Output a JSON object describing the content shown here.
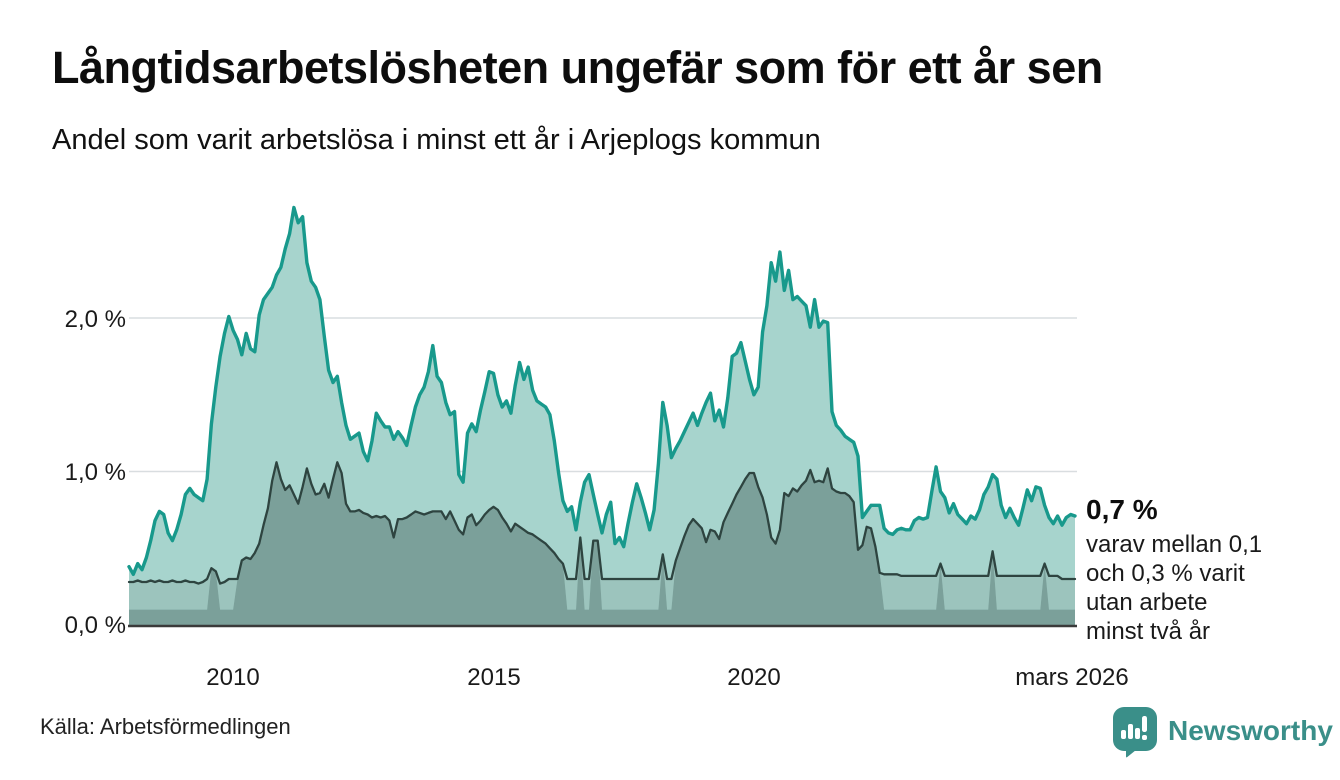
{
  "header": {
    "title": "Långtidsarbetslösheten ungefär som för ett år sen",
    "subtitle": "Andel som varit arbetslösa i minst ett år i Arjeplogs kommun"
  },
  "chart_data": {
    "type": "area",
    "title": "Långtidsarbetslösheten ungefär som för ett år sen",
    "subtitle": "Andel som varit arbetslösa i minst ett år i Arjeplogs kommun",
    "unit": "%",
    "x_start": "2008-01",
    "x_end": "2026-03",
    "x_tick_labels": [
      "2010",
      "2015",
      "2020",
      "mars 2026"
    ],
    "y_ticks_top_to_bottom": [
      "2,0 %",
      "1,0 %",
      "0,0 %"
    ],
    "y_tick_values": [
      2,
      1,
      0
    ],
    "ylim": [
      0,
      2.85
    ],
    "grid": "horizontal-only",
    "colors": {
      "teal_line": "#18998c",
      "teal_fill": "#a7d4cd",
      "dark_line": "#2e4440",
      "dark_fill": "#7ba09a",
      "censor_band_fill": "#9cc4bd",
      "gridline": "#d9dde0",
      "baseline": "#3a3a3a"
    },
    "series": [
      {
        "name": "arbetslösa minst ett år",
        "frequency": "monthly",
        "values": [
          0.38,
          0.33,
          0.4,
          0.36,
          0.44,
          0.55,
          0.68,
          0.74,
          0.72,
          0.6,
          0.55,
          0.62,
          0.72,
          0.85,
          0.89,
          0.85,
          0.83,
          0.81,
          0.95,
          1.31,
          1.55,
          1.75,
          1.9,
          2.01,
          1.92,
          1.86,
          1.76,
          1.9,
          1.8,
          1.78,
          2.02,
          2.12,
          2.16,
          2.2,
          2.28,
          2.33,
          2.45,
          2.55,
          2.72,
          2.62,
          2.66,
          2.36,
          2.24,
          2.2,
          2.12,
          1.88,
          1.66,
          1.58,
          1.62,
          1.45,
          1.3,
          1.21,
          1.23,
          1.25,
          1.13,
          1.07,
          1.2,
          1.38,
          1.33,
          1.29,
          1.29,
          1.21,
          1.26,
          1.22,
          1.17,
          1.3,
          1.42,
          1.5,
          1.55,
          1.65,
          1.82,
          1.62,
          1.58,
          1.45,
          1.37,
          1.39,
          0.98,
          0.93,
          1.25,
          1.31,
          1.26,
          1.4,
          1.52,
          1.65,
          1.64,
          1.5,
          1.42,
          1.46,
          1.38,
          1.56,
          1.71,
          1.6,
          1.68,
          1.53,
          1.46,
          1.44,
          1.42,
          1.37,
          1.2,
          0.99,
          0.81,
          0.74,
          0.77,
          0.62,
          0.8,
          0.93,
          0.98,
          0.85,
          0.72,
          0.6,
          0.72,
          0.8,
          0.53,
          0.57,
          0.51,
          0.66,
          0.8,
          0.92,
          0.83,
          0.73,
          0.62,
          0.75,
          1.05,
          1.45,
          1.3,
          1.09,
          1.15,
          1.2,
          1.26,
          1.32,
          1.38,
          1.3,
          1.38,
          1.45,
          1.51,
          1.33,
          1.4,
          1.29,
          1.48,
          1.75,
          1.77,
          1.84,
          1.72,
          1.6,
          1.5,
          1.55,
          1.91,
          2.08,
          2.36,
          2.24,
          2.43,
          2.18,
          2.31,
          2.12,
          2.14,
          2.11,
          2.08,
          1.94,
          2.12,
          1.94,
          1.98,
          1.97,
          1.39,
          1.3,
          1.27,
          1.23,
          1.21,
          1.19,
          1.1,
          0.7,
          0.74,
          0.78,
          0.78,
          0.78,
          0.63,
          0.6,
          0.59,
          0.62,
          0.63,
          0.62,
          0.62,
          0.68,
          0.7,
          0.69,
          0.7,
          0.87,
          1.03,
          0.87,
          0.83,
          0.73,
          0.79,
          0.72,
          0.69,
          0.66,
          0.71,
          0.69,
          0.75,
          0.85,
          0.9,
          0.98,
          0.95,
          0.78,
          0.7,
          0.76,
          0.7,
          0.65,
          0.76,
          0.88,
          0.81,
          0.9,
          0.89,
          0.78,
          0.7,
          0.66,
          0.71,
          0.65,
          0.7,
          0.72,
          0.71
        ]
      },
      {
        "name": "arbetslösa minst två år",
        "frequency": "monthly",
        "censor_floor": 0.1,
        "values": [
          0.28,
          0.28,
          0.29,
          0.28,
          0.28,
          0.29,
          0.28,
          0.29,
          0.28,
          0.28,
          0.29,
          0.28,
          0.28,
          0.29,
          0.28,
          0.28,
          0.27,
          0.28,
          0.3,
          0.37,
          0.35,
          0.27,
          0.28,
          0.3,
          0.3,
          0.3,
          0.42,
          0.44,
          0.43,
          0.47,
          0.53,
          0.65,
          0.76,
          0.94,
          1.06,
          0.95,
          0.88,
          0.91,
          0.85,
          0.79,
          0.9,
          1.02,
          0.92,
          0.85,
          0.86,
          0.92,
          0.83,
          0.95,
          1.06,
          0.99,
          0.79,
          0.74,
          0.74,
          0.75,
          0.73,
          0.72,
          0.7,
          0.71,
          0.7,
          0.71,
          0.68,
          0.57,
          0.69,
          0.69,
          0.7,
          0.72,
          0.74,
          0.73,
          0.72,
          0.73,
          0.74,
          0.74,
          0.74,
          0.69,
          0.74,
          0.68,
          0.62,
          0.59,
          0.7,
          0.72,
          0.65,
          0.68,
          0.72,
          0.75,
          0.77,
          0.75,
          0.7,
          0.66,
          0.61,
          0.66,
          0.64,
          0.62,
          0.6,
          0.59,
          0.57,
          0.55,
          0.53,
          0.5,
          0.47,
          0.43,
          0.4,
          0.3,
          0.3,
          0.3,
          0.57,
          0.3,
          0.3,
          0.55,
          0.55,
          0.3,
          0.3,
          0.3,
          0.3,
          0.3,
          0.3,
          0.3,
          0.3,
          0.3,
          0.3,
          0.3,
          0.3,
          0.3,
          0.3,
          0.46,
          0.3,
          0.3,
          0.42,
          0.5,
          0.58,
          0.65,
          0.69,
          0.66,
          0.63,
          0.54,
          0.62,
          0.61,
          0.56,
          0.67,
          0.73,
          0.79,
          0.85,
          0.9,
          0.95,
          0.99,
          0.99,
          0.9,
          0.83,
          0.72,
          0.57,
          0.53,
          0.62,
          0.86,
          0.84,
          0.89,
          0.87,
          0.91,
          0.94,
          1.01,
          0.93,
          0.94,
          0.93,
          1.02,
          0.89,
          0.87,
          0.86,
          0.86,
          0.84,
          0.8,
          0.49,
          0.52,
          0.64,
          0.63,
          0.51,
          0.34,
          0.33,
          0.33,
          0.33,
          0.33,
          0.32,
          0.32,
          0.32,
          0.32,
          0.32,
          0.32,
          0.32,
          0.32,
          0.32,
          0.4,
          0.32,
          0.32,
          0.32,
          0.32,
          0.32,
          0.32,
          0.32,
          0.32,
          0.32,
          0.32,
          0.32,
          0.48,
          0.32,
          0.32,
          0.32,
          0.32,
          0.32,
          0.32,
          0.32,
          0.32,
          0.32,
          0.32,
          0.32,
          0.4,
          0.32,
          0.32,
          0.32,
          0.3,
          0.3,
          0.3,
          0.3
        ],
        "censored": [
          1,
          1,
          1,
          1,
          1,
          1,
          1,
          1,
          1,
          1,
          1,
          1,
          1,
          1,
          1,
          1,
          1,
          1,
          1,
          0,
          0,
          1,
          1,
          1,
          1,
          0,
          0,
          0,
          0,
          0,
          0,
          0,
          0,
          0,
          0,
          0,
          0,
          0,
          0,
          0,
          0,
          0,
          0,
          0,
          0,
          0,
          0,
          0,
          0,
          0,
          0,
          0,
          0,
          0,
          0,
          0,
          0,
          0,
          0,
          0,
          0,
          0,
          0,
          0,
          0,
          0,
          0,
          0,
          0,
          0,
          0,
          0,
          0,
          0,
          0,
          0,
          0,
          0,
          0,
          0,
          0,
          0,
          0,
          0,
          0,
          0,
          0,
          0,
          0,
          0,
          0,
          0,
          0,
          0,
          0,
          0,
          0,
          0,
          0,
          0,
          0,
          1,
          1,
          1,
          0,
          1,
          1,
          0,
          0,
          1,
          1,
          1,
          1,
          1,
          1,
          1,
          1,
          1,
          1,
          1,
          1,
          1,
          1,
          0,
          1,
          1,
          0,
          0,
          0,
          0,
          0,
          0,
          0,
          0,
          0,
          0,
          0,
          0,
          0,
          0,
          0,
          0,
          0,
          0,
          0,
          0,
          0,
          0,
          0,
          0,
          0,
          0,
          0,
          0,
          0,
          0,
          0,
          0,
          0,
          0,
          0,
          0,
          0,
          0,
          0,
          0,
          0,
          0,
          0,
          0,
          0,
          0,
          0,
          0,
          1,
          1,
          1,
          1,
          1,
          1,
          1,
          1,
          1,
          1,
          1,
          1,
          1,
          0,
          1,
          1,
          1,
          1,
          1,
          1,
          1,
          1,
          1,
          1,
          1,
          0,
          1,
          1,
          1,
          1,
          1,
          1,
          1,
          1,
          1,
          1,
          1,
          0,
          1,
          1,
          1,
          1,
          1,
          1,
          1
        ]
      }
    ],
    "annotation": {
      "value_label": "0,7 %",
      "text_lines": [
        "varav mellan 0,1",
        "och 0,3 % varit",
        "utan arbete",
        "minst två år"
      ]
    }
  },
  "footer": {
    "source": "Källa: Arbetsförmedlingen",
    "brand": "Newsworthy",
    "brand_color": "#3a8f89"
  }
}
